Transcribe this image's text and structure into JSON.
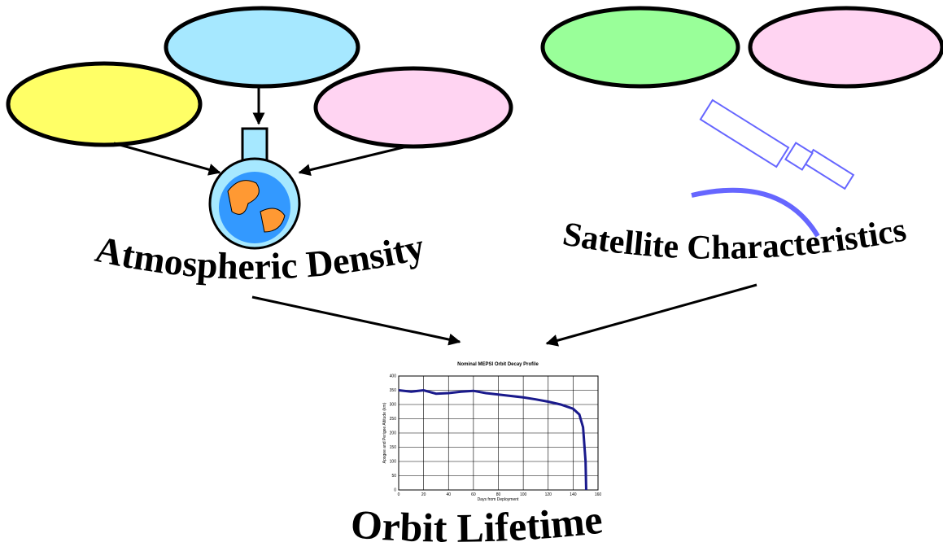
{
  "labels": {
    "density": "Atmospheric Density",
    "satellite": "Satellite Characteristics",
    "lifetime": "Orbit Lifetime"
  },
  "chart_data": {
    "type": "line",
    "title": "Nominal MEPSI Orbit Decay Profile",
    "x_label": "Days from Deployment",
    "y_label": "Apogee and Perigee Altitude (km)",
    "x": [
      0,
      10,
      20,
      30,
      40,
      50,
      60,
      70,
      80,
      90,
      100,
      110,
      120,
      130,
      140,
      145,
      148,
      150,
      150.5
    ],
    "values": [
      350,
      345,
      350,
      338,
      340,
      345,
      348,
      340,
      335,
      330,
      325,
      318,
      310,
      300,
      285,
      265,
      220,
      100,
      0
    ],
    "color": "#1a1a8c",
    "xlim": [
      0,
      160
    ],
    "xticks": [
      0,
      20,
      40,
      60,
      80,
      100,
      120,
      140,
      160
    ],
    "ylim": [
      0,
      400
    ],
    "yticks": [
      0,
      50,
      100,
      150,
      200,
      250,
      300,
      350,
      400
    ],
    "grid": true
  }
}
